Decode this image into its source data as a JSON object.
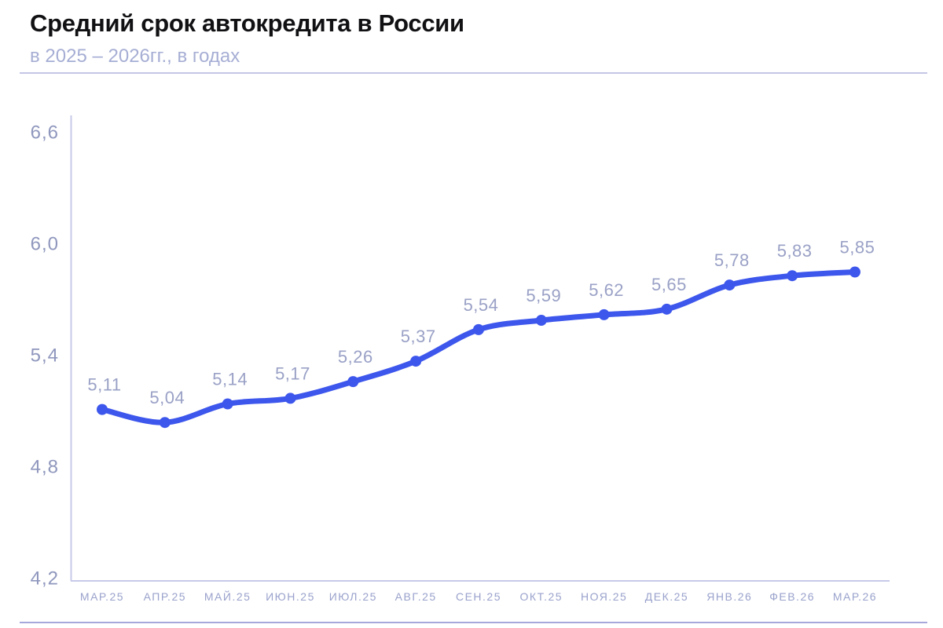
{
  "header": {
    "title": "Средний срок автокредита в России",
    "subtitle": "в 2025 – 2026гг., в годах"
  },
  "chart_data": {
    "type": "line",
    "title": "Средний срок автокредита в России",
    "subtitle": "в 2025 – 2026гг., в годах",
    "xlabel": "",
    "ylabel": "в годах",
    "categories": [
      "МАР.25",
      "АПР.25",
      "МАЙ.25",
      "ИЮН.25",
      "ИЮЛ.25",
      "АВГ.25",
      "СЕН.25",
      "ОКТ.25",
      "НОЯ.25",
      "ДЕК.25",
      "ЯНВ.26",
      "ФЕВ.26",
      "МАР.26"
    ],
    "values": [
      5.11,
      5.04,
      5.14,
      5.17,
      5.26,
      5.37,
      5.54,
      5.59,
      5.62,
      5.65,
      5.78,
      5.83,
      5.85
    ],
    "value_labels": [
      "5,11",
      "5,04",
      "5,14",
      "5,17",
      "5,26",
      "5,37",
      "5,54",
      "5,59",
      "5,62",
      "5,65",
      "5,78",
      "5,83",
      "5,85"
    ],
    "ylim": [
      4.2,
      6.6
    ],
    "y_ticks": [
      6.6,
      6.0,
      5.4,
      4.8,
      4.2
    ],
    "y_tick_labels": [
      "6,6",
      "6,0",
      "5,4",
      "4,8",
      "4,2"
    ],
    "grid": "off",
    "legend": "none",
    "colors": {
      "line": "#3d56ec",
      "marker": "#3d56ec",
      "value_label": "#9aa1c6",
      "y_tick_label": "#8f97bd",
      "x_tick_label": "#9aa2cc",
      "axis_line": "#c7cae8",
      "title": "#111114",
      "subtitle": "#a6aed4",
      "header_divider": "#c5c7e6",
      "footer_divider": "#a6a7da"
    }
  }
}
